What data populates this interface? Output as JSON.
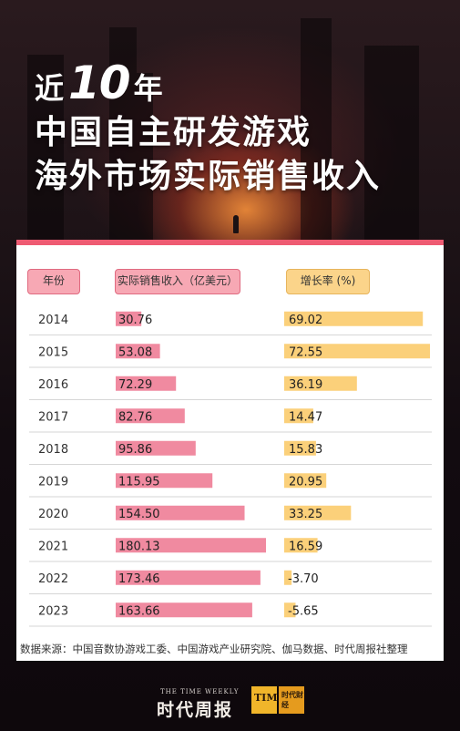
{
  "headline": {
    "line1_pre": "近",
    "line1_num": "10",
    "line1_post": "年",
    "line2": "中国自主研发游戏",
    "line3": "海外市场实际销售收入"
  },
  "table_headers": {
    "year": "年份",
    "sales": "实际销售收入（亿美元）",
    "growth": "增长率 (%)"
  },
  "colors": {
    "accent": "#ee5b72",
    "sales_bar": "#f08aa0",
    "growth_bar": "#fbd07a"
  },
  "chart_data": {
    "type": "bar",
    "categories": [
      "2014",
      "2015",
      "2016",
      "2017",
      "2018",
      "2019",
      "2020",
      "2021",
      "2022",
      "2023"
    ],
    "series": [
      {
        "name": "实际销售收入（亿美元）",
        "values": [
          30.76,
          53.08,
          72.29,
          82.76,
          95.86,
          115.95,
          154.5,
          180.13,
          173.46,
          163.66
        ],
        "labels": [
          "30.76",
          "53.08",
          "72.29",
          "82.76",
          "95.86",
          "115.95",
          "154.50",
          "180.13",
          "173.46",
          "163.66"
        ]
      },
      {
        "name": "增长率 (%)",
        "values": [
          69.02,
          72.55,
          36.19,
          14.47,
          15.83,
          20.95,
          33.25,
          16.59,
          -3.7,
          -5.65
        ],
        "labels": [
          "69.02",
          "72.55",
          "36.19",
          "14.47",
          "15.83",
          "20.95",
          "33.25",
          "16.59",
          "-3.70",
          "-5.65"
        ]
      }
    ],
    "title": "",
    "xlabel": "",
    "ylabel": ""
  },
  "source": "数据来源：中国音数协游戏工委、中国游戏产业研究院、伽马数据、时代周报社整理",
  "footer": {
    "brand_en": "THE TIME WEEKLY",
    "brand_cn": "时代周报",
    "logo_text": "TIME",
    "logo_cn": "时代财经"
  }
}
